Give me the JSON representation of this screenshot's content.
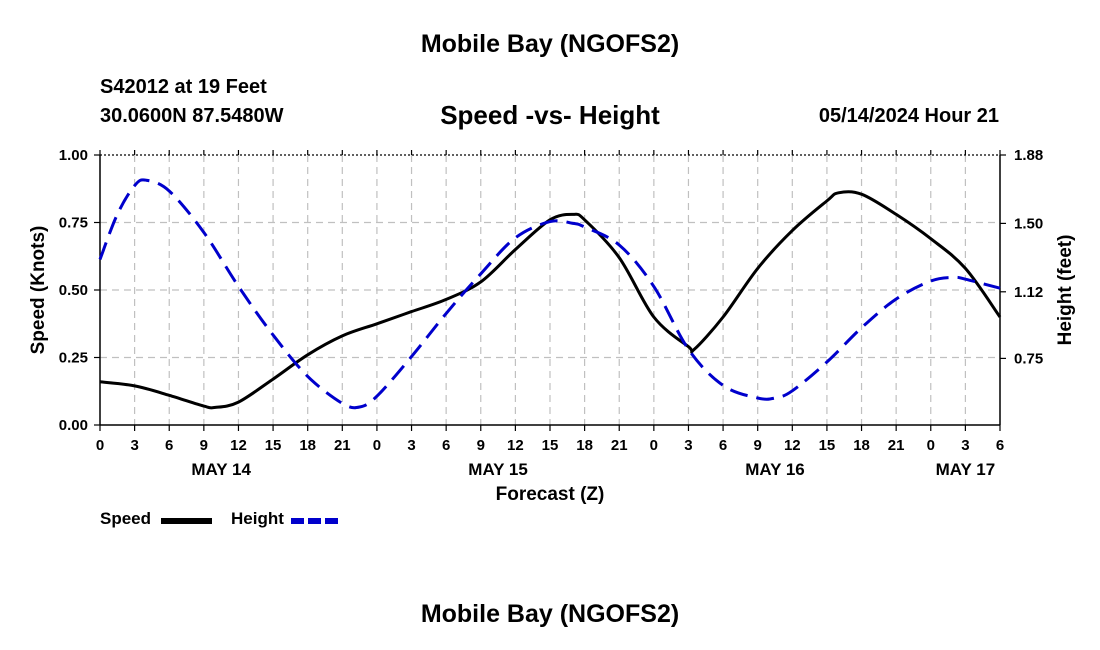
{
  "header": {
    "title": "Mobile Bay (NGOFS2)",
    "station": "S42012 at 19 Feet",
    "coords": "30.0600N  87.5480W",
    "subtitle": "Speed -vs- Height",
    "datetime": "05/14/2024 Hour 21"
  },
  "footer": {
    "title": "Mobile Bay (NGOFS2)"
  },
  "legend": {
    "speed_label": "Speed",
    "height_label": "Height"
  },
  "colors": {
    "speed": "#000000",
    "height": "#0000cc",
    "grid": "#c0c0c0"
  },
  "chart_data": {
    "type": "line",
    "xlabel": "Forecast (Z)",
    "ylabel": "Speed (Knots)",
    "y2label": "Height (feet)",
    "x_unit": "hours since 2024-05-14 00Z",
    "xlim": [
      0,
      78
    ],
    "ylim": [
      0,
      1.0
    ],
    "y2lim": [
      0.38,
      1.88
    ],
    "x_ticks": [
      0,
      3,
      6,
      9,
      12,
      15,
      18,
      21,
      24,
      27,
      30,
      33,
      36,
      39,
      42,
      45,
      48,
      51,
      54,
      57,
      60,
      63,
      66,
      69,
      72,
      75,
      78
    ],
    "x_tick_labels": [
      "0",
      "3",
      "6",
      "9",
      "12",
      "15",
      "18",
      "21",
      "0",
      "3",
      "6",
      "9",
      "12",
      "15",
      "18",
      "21",
      "0",
      "3",
      "6",
      "9",
      "12",
      "15",
      "18",
      "21",
      "0",
      "3",
      "6"
    ],
    "y_ticks": [
      0,
      0.25,
      0.5,
      0.75,
      1.0
    ],
    "y_tick_labels": [
      "0.00",
      "0.25",
      "0.50",
      "0.75",
      "1.00"
    ],
    "y2_ticks": [
      0.75,
      1.12,
      1.5,
      1.88
    ],
    "y2_tick_labels": [
      "0.75",
      "1.12",
      "1.50",
      "1.88"
    ],
    "date_labels": [
      {
        "x": 10.5,
        "label": "MAY 14"
      },
      {
        "x": 34.5,
        "label": "MAY 15"
      },
      {
        "x": 58.5,
        "label": "MAY 16"
      },
      {
        "x": 75,
        "label": "MAY 17"
      }
    ],
    "grid": true,
    "series": [
      {
        "name": "Speed",
        "axis": "left",
        "style": "solid",
        "x": [
          0,
          3,
          6,
          9,
          10,
          12,
          15,
          18,
          21,
          24,
          27,
          30,
          33,
          36,
          39,
          41,
          42,
          45,
          48,
          51,
          51.5,
          54,
          57,
          60,
          63,
          64,
          66,
          69,
          72,
          75,
          78
        ],
        "y": [
          0.16,
          0.145,
          0.11,
          0.07,
          0.065,
          0.085,
          0.17,
          0.26,
          0.33,
          0.375,
          0.42,
          0.465,
          0.53,
          0.65,
          0.76,
          0.78,
          0.76,
          0.62,
          0.4,
          0.29,
          0.28,
          0.4,
          0.58,
          0.72,
          0.83,
          0.86,
          0.855,
          0.78,
          0.69,
          0.58,
          0.4
        ]
      },
      {
        "name": "Height",
        "axis": "right",
        "style": "dashed",
        "x": [
          0,
          1.5,
          3,
          4,
          6,
          9,
          12,
          15,
          18,
          21,
          22.5,
          24,
          27,
          30,
          33,
          36,
          39,
          41,
          42,
          45,
          48,
          51,
          54,
          57,
          58.5,
          60,
          63,
          66,
          69,
          72,
          74,
          75,
          78
        ],
        "y": [
          1.3,
          1.55,
          1.71,
          1.74,
          1.68,
          1.45,
          1.15,
          0.88,
          0.65,
          0.5,
          0.48,
          0.54,
          0.76,
          1.0,
          1.22,
          1.42,
          1.51,
          1.5,
          1.48,
          1.38,
          1.15,
          0.8,
          0.6,
          0.53,
          0.53,
          0.57,
          0.73,
          0.92,
          1.08,
          1.18,
          1.2,
          1.19,
          1.14
        ]
      }
    ]
  }
}
